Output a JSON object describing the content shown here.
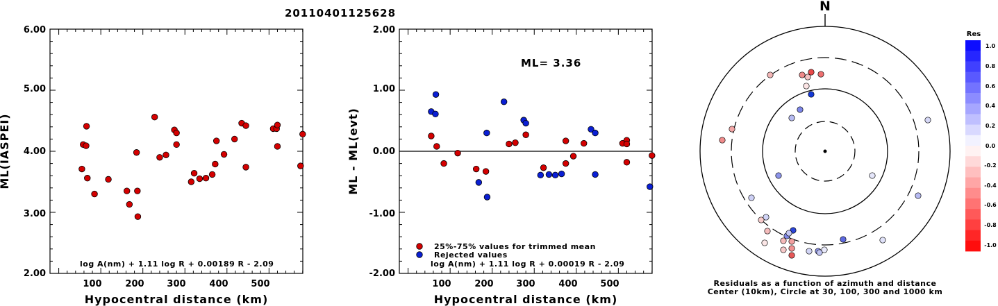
{
  "title": "20110401125628",
  "colors": {
    "trimmed": "#d40000",
    "rejected": "#0a1fd4"
  },
  "left_plot": {
    "ylabel": "ML(IASPEI)",
    "xlabel": "Hypocentral distance (km)",
    "formula": "log A(nm) + 1.11 log R + 0.00189 R - 2.09",
    "x_ticks": [
      "100",
      "200",
      "300",
      "400",
      "500"
    ],
    "y_ticks": [
      "2.00",
      "3.00",
      "4.00",
      "5.00",
      "6.00"
    ]
  },
  "mid_plot": {
    "ylabel": "ML - ML(evt)",
    "xlabel": "Hypocentral distance (km)",
    "ml_text": "ML= 3.36",
    "formula": "log A(nm) + 1.11 log R + 0.00019 R - 2.09",
    "legend_trimmed": "25%-75% values for trimmed mean",
    "legend_rejected": "Rejected values",
    "x_ticks": [
      "100",
      "200",
      "300",
      "400",
      "500"
    ],
    "y_ticks": [
      "-2.00",
      "-1.00",
      "0.00",
      "1.00",
      "2.00"
    ]
  },
  "polar": {
    "north_label": "N",
    "caption_line1": "Residuals as a function of azimuth and distance",
    "caption_line2": "Center (10km), Circle at 30, 100, 300 and 1000 km"
  },
  "colorbar": {
    "title": "Res",
    "labels": [
      "1.0",
      "0.8",
      "0.6",
      "0.4",
      "0.2",
      "0.0",
      "-0.2",
      "-0.4",
      "-0.6",
      "-0.8",
      "-1.0"
    ]
  },
  "chart_data": [
    {
      "type": "scatter",
      "xlabel": "Hypocentral distance (km)",
      "ylabel": "ML(IASPEI)",
      "xlim": [
        0,
        600
      ],
      "ylim": [
        2,
        6
      ],
      "points": [
        [
          55,
          3.71
        ],
        [
          58,
          4.11
        ],
        [
          65,
          4.09
        ],
        [
          66,
          4.41
        ],
        [
          68,
          3.56
        ],
        [
          85,
          3.3
        ],
        [
          118,
          3.54
        ],
        [
          162,
          3.35
        ],
        [
          168,
          3.13
        ],
        [
          185,
          3.98
        ],
        [
          187,
          3.35
        ],
        [
          188,
          2.93
        ],
        [
          228,
          4.56
        ],
        [
          240,
          3.9
        ],
        [
          255,
          3.94
        ],
        [
          275,
          4.35
        ],
        [
          280,
          4.3
        ],
        [
          280,
          4.11
        ],
        [
          315,
          3.5
        ],
        [
          322,
          3.64
        ],
        [
          335,
          3.55
        ],
        [
          350,
          3.56
        ],
        [
          365,
          3.62
        ],
        [
          372,
          3.79
        ],
        [
          375,
          4.17
        ],
        [
          393,
          3.95
        ],
        [
          418,
          4.2
        ],
        [
          435,
          4.46
        ],
        [
          445,
          4.42
        ],
        [
          445,
          3.74
        ],
        [
          510,
          4.37
        ],
        [
          518,
          4.37
        ],
        [
          520,
          4.43
        ],
        [
          520,
          4.08
        ],
        [
          575,
          3.76
        ],
        [
          580,
          4.28
        ]
      ]
    },
    {
      "type": "scatter",
      "xlabel": "Hypocentral distance (km)",
      "ylabel": "ML - ML(evt)",
      "xlim": [
        0,
        600
      ],
      "ylim": [
        -2,
        2
      ],
      "title": "ML= 3.36",
      "series": [
        {
          "name": "25%-75% values for trimmed mean",
          "points": [
            [
              55,
              0.25
            ],
            [
              68,
              0.08
            ],
            [
              85,
              -0.2
            ],
            [
              118,
              -0.03
            ],
            [
              162,
              -0.29
            ],
            [
              185,
              -0.33
            ],
            [
              240,
              0.12
            ],
            [
              255,
              0.14
            ],
            [
              280,
              0.27
            ],
            [
              322,
              -0.27
            ],
            [
              375,
              -0.2
            ],
            [
              375,
              0.17
            ],
            [
              393,
              -0.08
            ],
            [
              418,
              0.13
            ],
            [
              510,
              0.13
            ],
            [
              520,
              0.18
            ],
            [
              520,
              0.12
            ],
            [
              520,
              -0.18
            ],
            [
              580,
              -0.07
            ]
          ]
        },
        {
          "name": "Rejected values",
          "points": [
            [
              55,
              0.65
            ],
            [
              65,
              0.61
            ],
            [
              66,
              0.93
            ],
            [
              168,
              -0.51
            ],
            [
              187,
              0.3
            ],
            [
              188,
              -0.75
            ],
            [
              228,
              0.81
            ],
            [
              275,
              0.51
            ],
            [
              280,
              0.46
            ],
            [
              315,
              -0.39
            ],
            [
              335,
              -0.38
            ],
            [
              350,
              -0.39
            ],
            [
              365,
              -0.37
            ],
            [
              435,
              0.36
            ],
            [
              445,
              0.3
            ],
            [
              445,
              -0.38
            ],
            [
              575,
              -0.58
            ]
          ]
        }
      ]
    }
  ]
}
